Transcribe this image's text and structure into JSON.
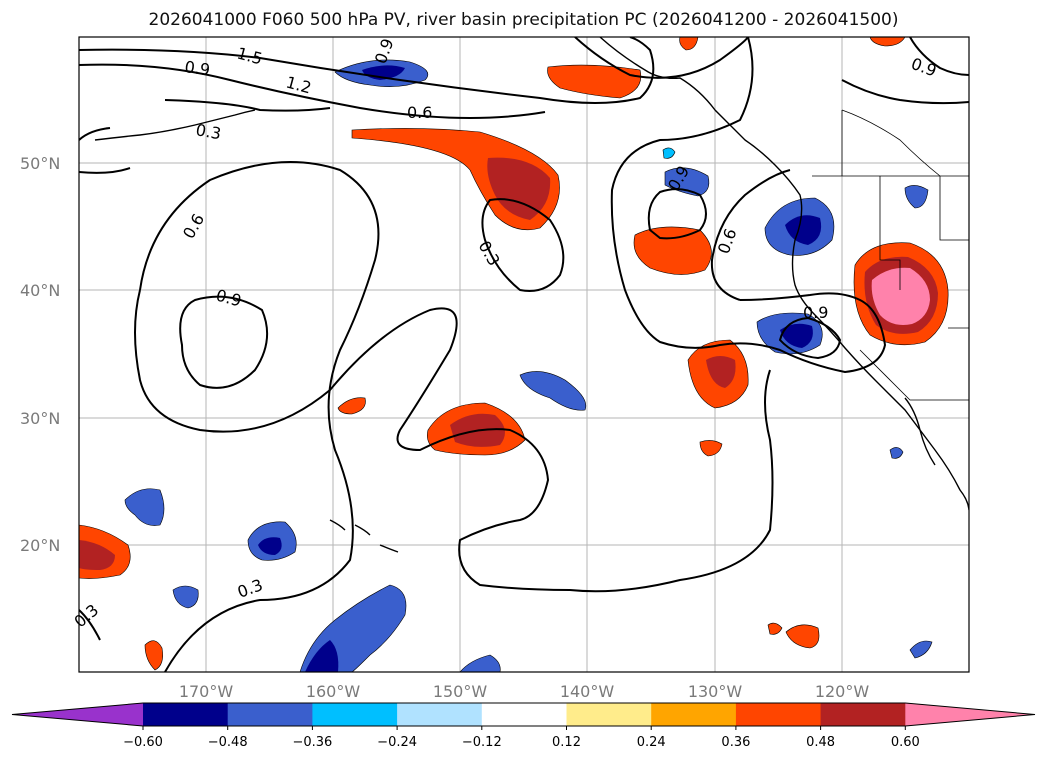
{
  "title": "2026041000 F060 500 hPa PV, river basin precipitation PC (2026041200 - 2026041500)",
  "lat_labels": [
    "50°N",
    "40°N",
    "30°N",
    "20°N"
  ],
  "lon_labels": [
    "170°W",
    "160°W",
    "150°W",
    "140°W",
    "130°W",
    "120°W"
  ],
  "contour_labels": [
    "1.5",
    "0.9",
    "1.2",
    "0.6",
    "0.3",
    "0.9",
    "0.6",
    "0.9",
    "0.6",
    "0.3",
    "0.9",
    "0.9",
    "0.3",
    "0.3",
    "0.9"
  ],
  "colorbar": {
    "ticks": [
      "−0.60",
      "−0.48",
      "−0.36",
      "−0.24",
      "−0.12",
      "0.12",
      "0.24",
      "0.36",
      "0.48",
      "0.60"
    ],
    "colors": [
      "#9932cc",
      "#00008b",
      "#3a5fcd",
      "#00bfff",
      "#b0e2ff",
      "#ffffff",
      "#ffec8b",
      "#ffa500",
      "#ff4500",
      "#b22222",
      "#ff82ab"
    ]
  }
}
